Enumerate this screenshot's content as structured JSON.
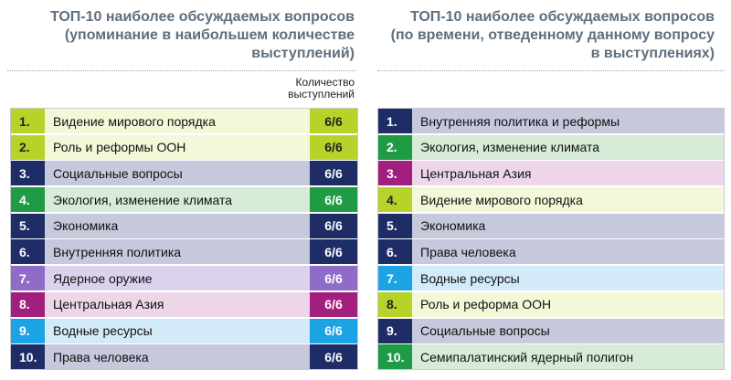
{
  "left": {
    "title_lines": [
      "ТОП-10 наиболее обсуждаемых вопросов",
      "(упоминание в наибольшем количестве",
      "выступлений)"
    ],
    "count_header_lines": [
      "Количество",
      "выступлений"
    ],
    "rows": [
      {
        "rank": "1.",
        "label": "Видение мирового порядка",
        "count": "6/6",
        "accent": "#b6d32a",
        "bg": "#f3f9d8"
      },
      {
        "rank": "2.",
        "label": "Роль и реформы ООН",
        "count": "6/6",
        "accent": "#b6d32a",
        "bg": "#f3f9d8"
      },
      {
        "rank": "3.",
        "label": "Социальные вопросы",
        "count": "6/6",
        "accent": "#1f2d66",
        "bg": "#c6c9db"
      },
      {
        "rank": "4.",
        "label": "Экология, изменение климата",
        "count": "6/6",
        "accent": "#1f9b45",
        "bg": "#d6ecd9"
      },
      {
        "rank": "5.",
        "label": "Экономика",
        "count": "6/6",
        "accent": "#1f2d66",
        "bg": "#c6c9db"
      },
      {
        "rank": "6.",
        "label": "Внутренняя политика",
        "count": "6/6",
        "accent": "#1f2d66",
        "bg": "#c6c9db"
      },
      {
        "rank": "7.",
        "label": "Ядерное оружие",
        "count": "6/6",
        "accent": "#8f6cc7",
        "bg": "#dcd2ee"
      },
      {
        "rank": "8.",
        "label": "Центральная Азия",
        "count": "6/6",
        "accent": "#a31f7d",
        "bg": "#ecd6e7"
      },
      {
        "rank": "9.",
        "label": "Водные ресурсы",
        "count": "6/6",
        "accent": "#1ca3e3",
        "bg": "#d3ebf8"
      },
      {
        "rank": "10.",
        "label": "Права  человека",
        "count": "6/6",
        "accent": "#1f2d66",
        "bg": "#c6c9db"
      }
    ]
  },
  "right": {
    "title_lines": [
      "ТОП-10 наиболее обсуждаемых вопросов",
      "(по времени, отведенному данному вопросу",
      "в выступлениях)"
    ],
    "rows": [
      {
        "rank": "1.",
        "label": "Внутренняя политика и реформы",
        "accent": "#1f2d66",
        "bg": "#c6c9db"
      },
      {
        "rank": "2.",
        "label": "Экология, изменение климата",
        "accent": "#1f9b45",
        "bg": "#d6ecd9"
      },
      {
        "rank": "3.",
        "label": "Центральная Азия",
        "accent": "#a31f7d",
        "bg": "#ecd6e7"
      },
      {
        "rank": "4.",
        "label": "Видение мирового порядка",
        "accent": "#b6d32a",
        "bg": "#f3f9d8"
      },
      {
        "rank": "5.",
        "label": "Экономика",
        "accent": "#1f2d66",
        "bg": "#c6c9db"
      },
      {
        "rank": "6.",
        "label": "Права человека",
        "accent": "#1f2d66",
        "bg": "#c6c9db"
      },
      {
        "rank": "7.",
        "label": "Водные ресурсы",
        "accent": "#1ca3e3",
        "bg": "#d3ebf8"
      },
      {
        "rank": "8.",
        "label": "Роль и реформа ООН",
        "accent": "#b6d32a",
        "bg": "#f3f9d8"
      },
      {
        "rank": "9.",
        "label": "Социальные вопросы",
        "accent": "#1f2d66",
        "bg": "#c6c9db"
      },
      {
        "rank": "10.",
        "label": "Семипалатинский ядерный полигон",
        "accent": "#1f9b45",
        "bg": "#d6ecd9"
      }
    ]
  }
}
